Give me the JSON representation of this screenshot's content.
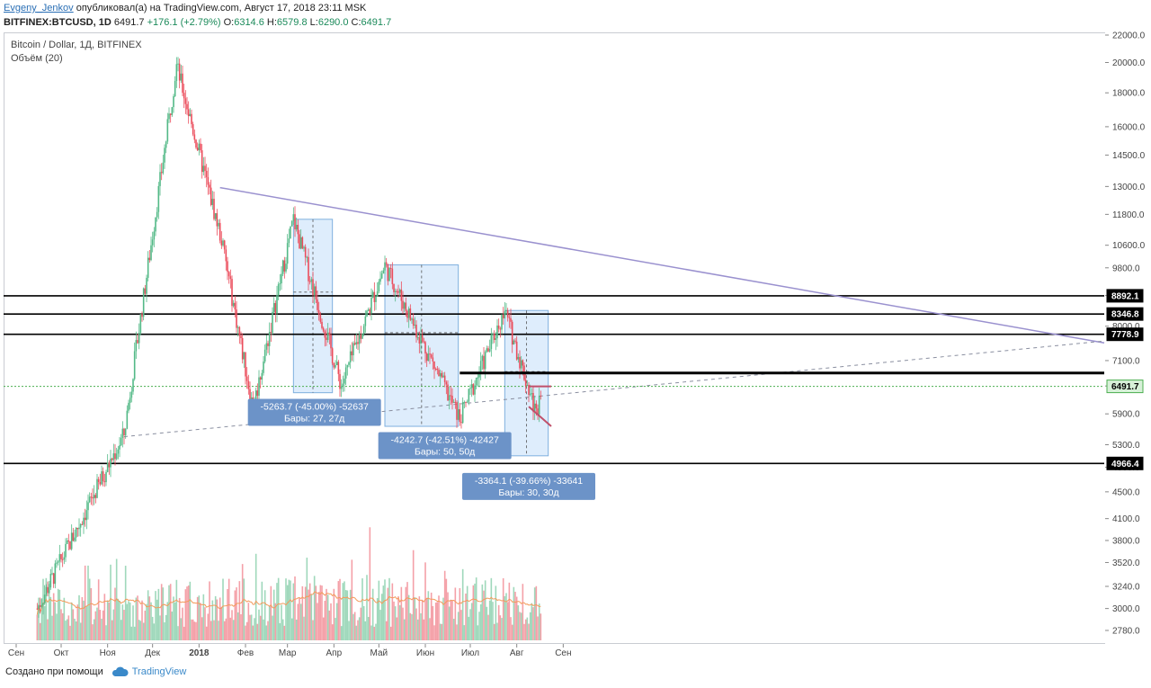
{
  "header": {
    "author": "Evgeny_Jenkov",
    "published_text": "опубликовал(а) на TradingView.com, Август 17, 2018 23:11 MSK",
    "symbol": "BITFINEX:BTCUSD, 1D",
    "last": "6491.7",
    "change": "+176.1 (+2.79%)",
    "o_label": "O:",
    "o_val": "6314.6",
    "h_label": "H:",
    "h_val": "6579.8",
    "l_label": "L:",
    "l_val": "6290.0",
    "c_label": "C:",
    "c_val": "6491.7"
  },
  "legend": {
    "title": "Bitcoin / Dollar, 1Д, BITFINEX",
    "volume": "Объём (20)"
  },
  "footer": {
    "created_with": "Создано при помощи",
    "brand": "TradingView"
  },
  "colors": {
    "up": "#53b987",
    "down": "#eb4d5c",
    "vol_up": "#9fd8bb",
    "vol_down": "#f4a0a8",
    "ma": "#f39a5b",
    "trend": "#9a91cf",
    "box": "#d6e9fb",
    "label_bg": "#6c93c8",
    "price_line": "#4caf50"
  },
  "chart_data": {
    "type": "candlestick",
    "title": "Bitcoin / Dollar, 1Д, BITFINEX",
    "y_axis": {
      "scale": "log",
      "ticks": [
        22000,
        20000,
        18000,
        16000,
        14500,
        13000,
        11800,
        10600,
        9800,
        8900,
        8000,
        7100,
        6500,
        5900,
        5300,
        4900,
        4500,
        4100,
        3800,
        3520,
        3240,
        3000,
        2780
      ]
    },
    "x_axis": {
      "ticks": [
        "Сен",
        "Окт",
        "Ноя",
        "Дек",
        "2018",
        "Фев",
        "Мар",
        "Апр",
        "Май",
        "Июн",
        "Июл",
        "Авг",
        "Сен"
      ]
    },
    "horizontal_levels": [
      8892.1,
      8346.8,
      7778.9,
      4966.4
    ],
    "price_labels": [
      "8892.1",
      "8346.8",
      "7778.9",
      "4966.4",
      "6491.7"
    ],
    "current_price": 6491.7,
    "key_prices": [
      {
        "date": "2017-09-15",
        "price": 3000
      },
      {
        "date": "2017-11-12",
        "price": 5500
      },
      {
        "date": "2017-12-17",
        "price": 19800
      },
      {
        "date": "2018-01-16",
        "price": 10800
      },
      {
        "date": "2018-02-06",
        "price": 6000
      },
      {
        "date": "2018-03-05",
        "price": 11600
      },
      {
        "date": "2018-04-06",
        "price": 6500
      },
      {
        "date": "2018-05-05",
        "price": 9900
      },
      {
        "date": "2018-06-24",
        "price": 5800
      },
      {
        "date": "2018-07-24",
        "price": 8450
      },
      {
        "date": "2018-08-14",
        "price": 5900
      },
      {
        "date": "2018-08-17",
        "price": 6491.7
      }
    ],
    "measurements": [
      {
        "line1": "-5263.7 (-45.00%) -52637",
        "line2": "Бары: 27, 27д"
      },
      {
        "line1": "-4242.7 (-42.51%) -42427",
        "line2": "Бары: 50, 50д"
      },
      {
        "line1": "-3364.1 (-39.66%) -33641",
        "line2": "Бары: 30, 30д"
      }
    ],
    "volume_series": "Объём (20)"
  }
}
